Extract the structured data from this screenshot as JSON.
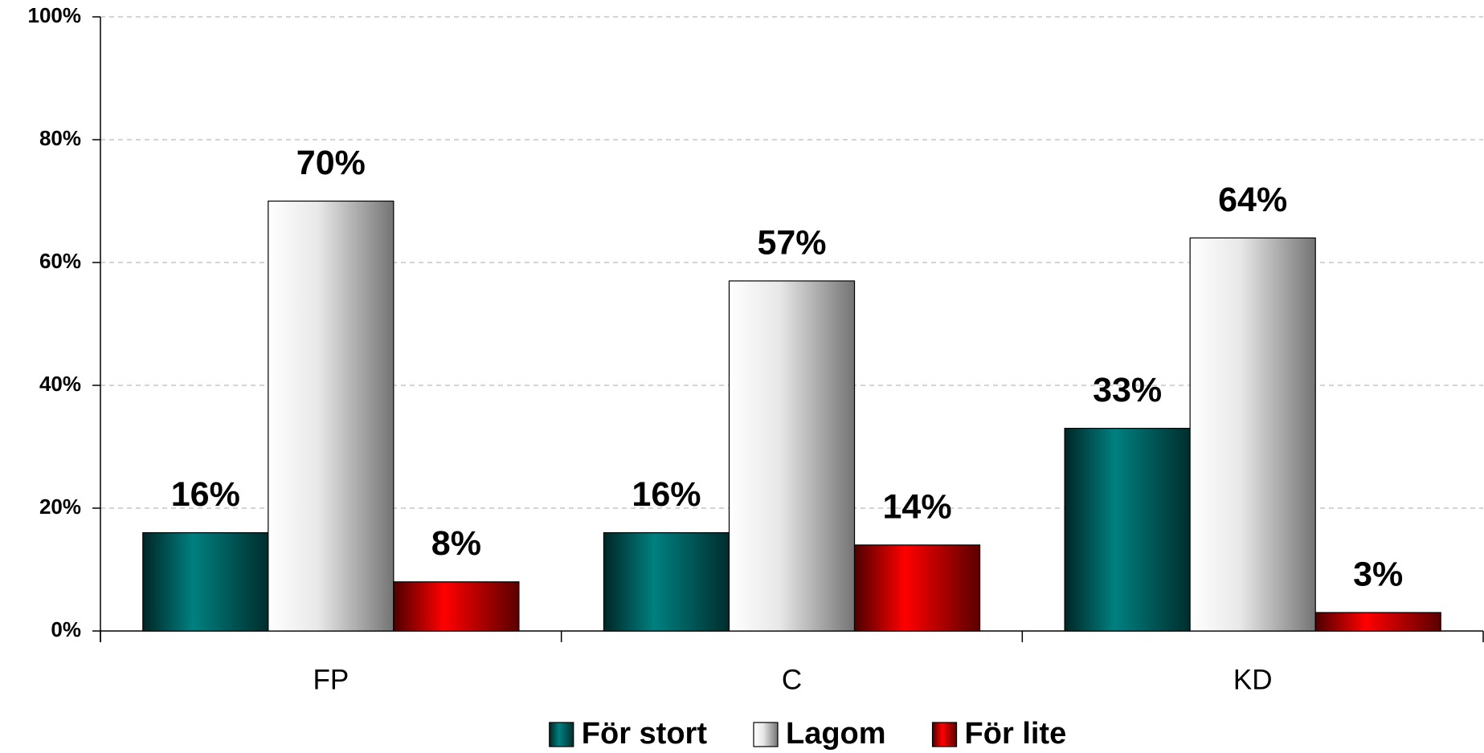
{
  "chart_data": {
    "type": "bar",
    "categories": [
      "FP",
      "C",
      "KD"
    ],
    "series": [
      {
        "name": "För stort",
        "color": "#008080",
        "values": [
          16,
          16,
          33
        ],
        "value_labels": [
          "16%",
          "16%",
          "33%"
        ]
      },
      {
        "name": "Lagom",
        "color": "#e8e8e8",
        "values": [
          70,
          57,
          64
        ],
        "value_labels": [
          "70%",
          "57%",
          "64%"
        ]
      },
      {
        "name": "För lite",
        "color": "#ff0000",
        "values": [
          8,
          14,
          3
        ],
        "value_labels": [
          "8%",
          "14%",
          "3%"
        ]
      }
    ],
    "ylim": [
      0,
      100
    ],
    "yticks": [
      {
        "value": 0,
        "label": "0%"
      },
      {
        "value": 20,
        "label": "20%"
      },
      {
        "value": 40,
        "label": "40%"
      },
      {
        "value": 60,
        "label": "60%"
      },
      {
        "value": 80,
        "label": "80%"
      },
      {
        "value": 100,
        "label": "100%"
      }
    ],
    "grid": true,
    "legend": "bottom"
  }
}
